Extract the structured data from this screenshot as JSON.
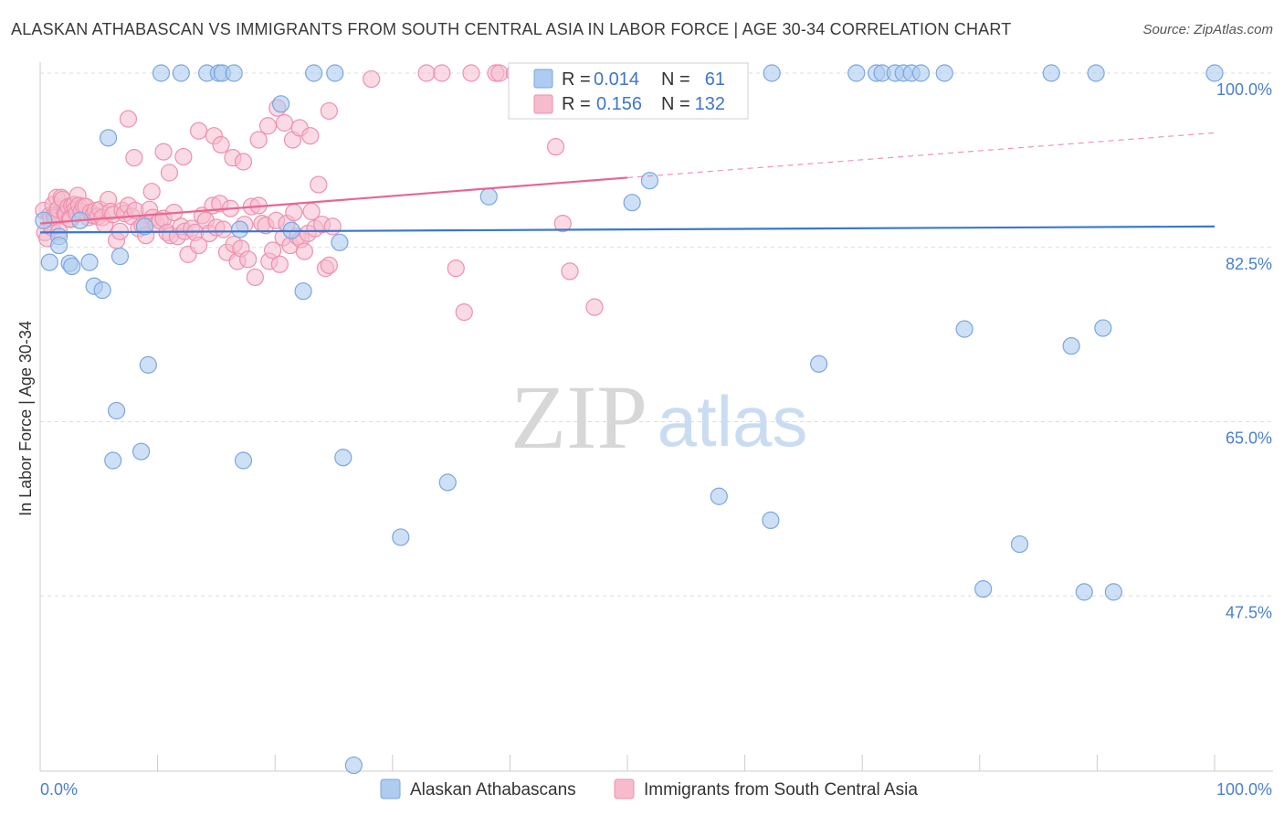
{
  "title": "ALASKAN ATHABASCAN VS IMMIGRANTS FROM SOUTH CENTRAL ASIA IN LABOR FORCE | AGE 30-34 CORRELATION CHART",
  "source": "Source: ZipAtlas.com",
  "watermark": {
    "zip": "ZIP",
    "atlas": "atlas"
  },
  "colors": {
    "blue_fill": "#aecbf0",
    "blue_stroke": "#7aa6e0",
    "blue_line": "#3a78d0",
    "pink_fill": "#f6bccd",
    "pink_stroke": "#ee90ad",
    "pink_line": "#e8668f",
    "tick_text": "#4a7fd1",
    "grid": "#dddddd"
  },
  "legend": {
    "stats": [
      {
        "r_label": "R =",
        "r_value": "0.014",
        "n_label": "N =",
        "n_value": "61"
      },
      {
        "r_label": "R =",
        "r_value": "0.156",
        "n_label": "N =",
        "n_value": "132"
      }
    ],
    "series": [
      "Alaskan Athabascans",
      "Immigrants from South Central Asia"
    ]
  },
  "chart_data": {
    "type": "scatter",
    "title": "ALASKAN ATHABASCAN VS IMMIGRANTS FROM SOUTH CENTRAL ASIA IN LABOR FORCE | AGE 30-34 CORRELATION CHART",
    "xlabel": "",
    "ylabel": "In Labor Force | Age 30-34",
    "xlim": [
      0,
      100
    ],
    "ylim": [
      30,
      100
    ],
    "x_tick_labels": [
      "0.0%",
      "100.0%"
    ],
    "y_ticks": [
      47.5,
      65.0,
      82.5,
      100.0
    ],
    "y_tick_labels": [
      "47.5%",
      "65.0%",
      "82.5%",
      "100.0%"
    ],
    "grid": true,
    "legend_position": "top-center and bottom",
    "series": [
      {
        "name": "Alaskan Athabascans",
        "color": "#aecbf0",
        "trend": {
          "x": [
            0,
            100
          ],
          "y": [
            84.0,
            84.6
          ]
        },
        "points": [
          [
            0.3,
            85.2
          ],
          [
            0.8,
            81.0
          ],
          [
            1.6,
            83.6
          ],
          [
            1.6,
            82.7
          ],
          [
            2.5,
            80.9
          ],
          [
            2.7,
            80.6
          ],
          [
            3.4,
            85.2
          ],
          [
            4.2,
            81.0
          ],
          [
            4.6,
            78.6
          ],
          [
            5.3,
            78.2
          ],
          [
            5.8,
            93.5
          ],
          [
            6.5,
            66.1
          ],
          [
            6.2,
            61.1
          ],
          [
            6.8,
            81.6
          ],
          [
            8.9,
            84.6
          ],
          [
            8.6,
            62.0
          ],
          [
            9.2,
            70.7
          ],
          [
            10.3,
            100.0
          ],
          [
            12.0,
            100.0
          ],
          [
            14.2,
            100.0
          ],
          [
            15.2,
            100.0
          ],
          [
            15.5,
            100.0
          ],
          [
            16.5,
            100.0
          ],
          [
            17.0,
            84.3
          ],
          [
            17.3,
            61.1
          ],
          [
            20.5,
            96.9
          ],
          [
            21.4,
            84.2
          ],
          [
            22.4,
            78.1
          ],
          [
            23.3,
            100.0
          ],
          [
            25.1,
            100.0
          ],
          [
            25.5,
            83.0
          ],
          [
            25.8,
            61.4
          ],
          [
            26.7,
            30.5
          ],
          [
            30.7,
            53.4
          ],
          [
            34.7,
            58.9
          ],
          [
            38.2,
            87.6
          ],
          [
            50.2,
            97.2
          ],
          [
            50.4,
            87.0
          ],
          [
            51.9,
            89.2
          ],
          [
            57.8,
            57.5
          ],
          [
            62.3,
            100.0
          ],
          [
            62.2,
            55.1
          ],
          [
            66.3,
            70.8
          ],
          [
            69.5,
            100.0
          ],
          [
            71.2,
            100.0
          ],
          [
            71.7,
            100.0
          ],
          [
            72.8,
            100.0
          ],
          [
            73.5,
            100.0
          ],
          [
            74.2,
            100.0
          ],
          [
            75.0,
            100.0
          ],
          [
            77.0,
            100.0
          ],
          [
            78.7,
            74.3
          ],
          [
            80.3,
            48.2
          ],
          [
            83.4,
            52.7
          ],
          [
            86.1,
            100.0
          ],
          [
            87.8,
            72.6
          ],
          [
            88.9,
            47.9
          ],
          [
            89.9,
            100.0
          ],
          [
            90.5,
            74.4
          ],
          [
            91.4,
            47.9
          ],
          [
            100.0,
            100.0
          ]
        ]
      },
      {
        "name": "Immigrants from South Central Asia",
        "color": "#f6bccd",
        "trend": {
          "x": [
            0,
            50
          ],
          "y": [
            84.9,
            89.5
          ]
        },
        "trend_dashed": {
          "x": [
            50,
            100
          ],
          "y": [
            89.5,
            94.0
          ]
        },
        "points": [
          [
            0.3,
            86.2
          ],
          [
            0.4,
            84.0
          ],
          [
            0.6,
            83.4
          ],
          [
            0.8,
            85.7
          ],
          [
            0.9,
            85.4
          ],
          [
            1.0,
            84.5
          ],
          [
            1.1,
            86.8
          ],
          [
            1.2,
            85.7
          ],
          [
            1.3,
            85.5
          ],
          [
            1.4,
            87.5
          ],
          [
            1.5,
            86.3
          ],
          [
            1.6,
            84.1
          ],
          [
            1.8,
            87.5
          ],
          [
            1.9,
            87.3
          ],
          [
            2.1,
            85.9
          ],
          [
            2.2,
            85.8
          ],
          [
            2.4,
            86.6
          ],
          [
            2.5,
            85.4
          ],
          [
            2.6,
            85.3
          ],
          [
            2.7,
            86.7
          ],
          [
            2.9,
            86.8
          ],
          [
            3.0,
            86.3
          ],
          [
            3.1,
            85.9
          ],
          [
            3.2,
            87.7
          ],
          [
            3.3,
            86.7
          ],
          [
            3.5,
            86.1
          ],
          [
            3.7,
            86.6
          ],
          [
            3.9,
            86.6
          ],
          [
            4.1,
            85.5
          ],
          [
            4.3,
            86.0
          ],
          [
            4.5,
            85.7
          ],
          [
            4.7,
            86.2
          ],
          [
            4.9,
            85.6
          ],
          [
            5.1,
            86.3
          ],
          [
            5.3,
            85.5
          ],
          [
            5.5,
            84.8
          ],
          [
            5.8,
            87.3
          ],
          [
            6.0,
            86.1
          ],
          [
            6.2,
            85.8
          ],
          [
            6.5,
            83.2
          ],
          [
            6.8,
            84.1
          ],
          [
            7.0,
            86.2
          ],
          [
            7.2,
            85.9
          ],
          [
            7.5,
            86.7
          ],
          [
            7.8,
            85.6
          ],
          [
            8.1,
            86.2
          ],
          [
            8.4,
            84.4
          ],
          [
            8.7,
            84.7
          ],
          [
            9.0,
            83.7
          ],
          [
            9.3,
            86.3
          ],
          [
            9.6,
            85.5
          ],
          [
            9.9,
            84.8
          ],
          [
            10.2,
            85.2
          ],
          [
            10.5,
            85.4
          ],
          [
            10.8,
            84.0
          ],
          [
            11.1,
            83.7
          ],
          [
            11.4,
            86.0
          ],
          [
            11.7,
            83.6
          ],
          [
            12.0,
            84.6
          ],
          [
            12.3,
            84.1
          ],
          [
            12.6,
            81.8
          ],
          [
            12.9,
            84.4
          ],
          [
            13.2,
            84.0
          ],
          [
            13.5,
            82.7
          ],
          [
            13.8,
            85.7
          ],
          [
            14.1,
            85.2
          ],
          [
            14.4,
            83.9
          ],
          [
            14.7,
            86.7
          ],
          [
            15.0,
            84.5
          ],
          [
            15.3,
            86.9
          ],
          [
            15.6,
            84.3
          ],
          [
            15.9,
            82.0
          ],
          [
            16.2,
            86.4
          ],
          [
            16.5,
            82.8
          ],
          [
            16.8,
            81.1
          ],
          [
            17.1,
            82.4
          ],
          [
            17.4,
            84.8
          ],
          [
            17.7,
            81.3
          ],
          [
            18.0,
            86.6
          ],
          [
            18.3,
            79.5
          ],
          [
            18.6,
            86.7
          ],
          [
            18.9,
            84.9
          ],
          [
            19.2,
            84.7
          ],
          [
            19.5,
            81.1
          ],
          [
            19.8,
            82.2
          ],
          [
            20.1,
            85.2
          ],
          [
            20.4,
            80.8
          ],
          [
            20.7,
            83.5
          ],
          [
            21.0,
            84.9
          ],
          [
            21.3,
            82.7
          ],
          [
            21.6,
            86.0
          ],
          [
            21.9,
            83.6
          ],
          [
            22.2,
            83.3
          ],
          [
            22.5,
            82.1
          ],
          [
            22.8,
            83.9
          ],
          [
            23.1,
            86.1
          ],
          [
            23.4,
            84.4
          ],
          [
            23.7,
            88.8
          ],
          [
            24.0,
            84.8
          ],
          [
            24.3,
            80.4
          ],
          [
            24.6,
            80.7
          ],
          [
            24.9,
            84.6
          ],
          [
            7.5,
            95.4
          ],
          [
            8.0,
            91.5
          ],
          [
            9.5,
            88.1
          ],
          [
            10.5,
            92.1
          ],
          [
            11.0,
            90.0
          ],
          [
            12.2,
            91.6
          ],
          [
            13.5,
            94.2
          ],
          [
            14.8,
            93.7
          ],
          [
            15.4,
            92.8
          ],
          [
            16.4,
            91.5
          ],
          [
            17.3,
            91.1
          ],
          [
            18.6,
            93.3
          ],
          [
            19.4,
            94.7
          ],
          [
            20.2,
            96.5
          ],
          [
            20.8,
            95.0
          ],
          [
            21.5,
            93.3
          ],
          [
            22.1,
            94.5
          ],
          [
            23.0,
            93.7
          ],
          [
            24.6,
            96.2
          ],
          [
            28.2,
            99.4
          ],
          [
            32.9,
            100.0
          ],
          [
            34.2,
            100.0
          ],
          [
            36.7,
            100.0
          ],
          [
            36.1,
            76.0
          ],
          [
            38.8,
            100.0
          ],
          [
            39.1,
            100.0
          ],
          [
            40.4,
            100.0
          ],
          [
            41.6,
            100.0
          ],
          [
            42.3,
            100.0
          ],
          [
            44.5,
            84.9
          ],
          [
            43.9,
            92.6
          ],
          [
            47.2,
            76.5
          ],
          [
            45.1,
            80.1
          ],
          [
            35.4,
            80.4
          ]
        ]
      }
    ]
  }
}
